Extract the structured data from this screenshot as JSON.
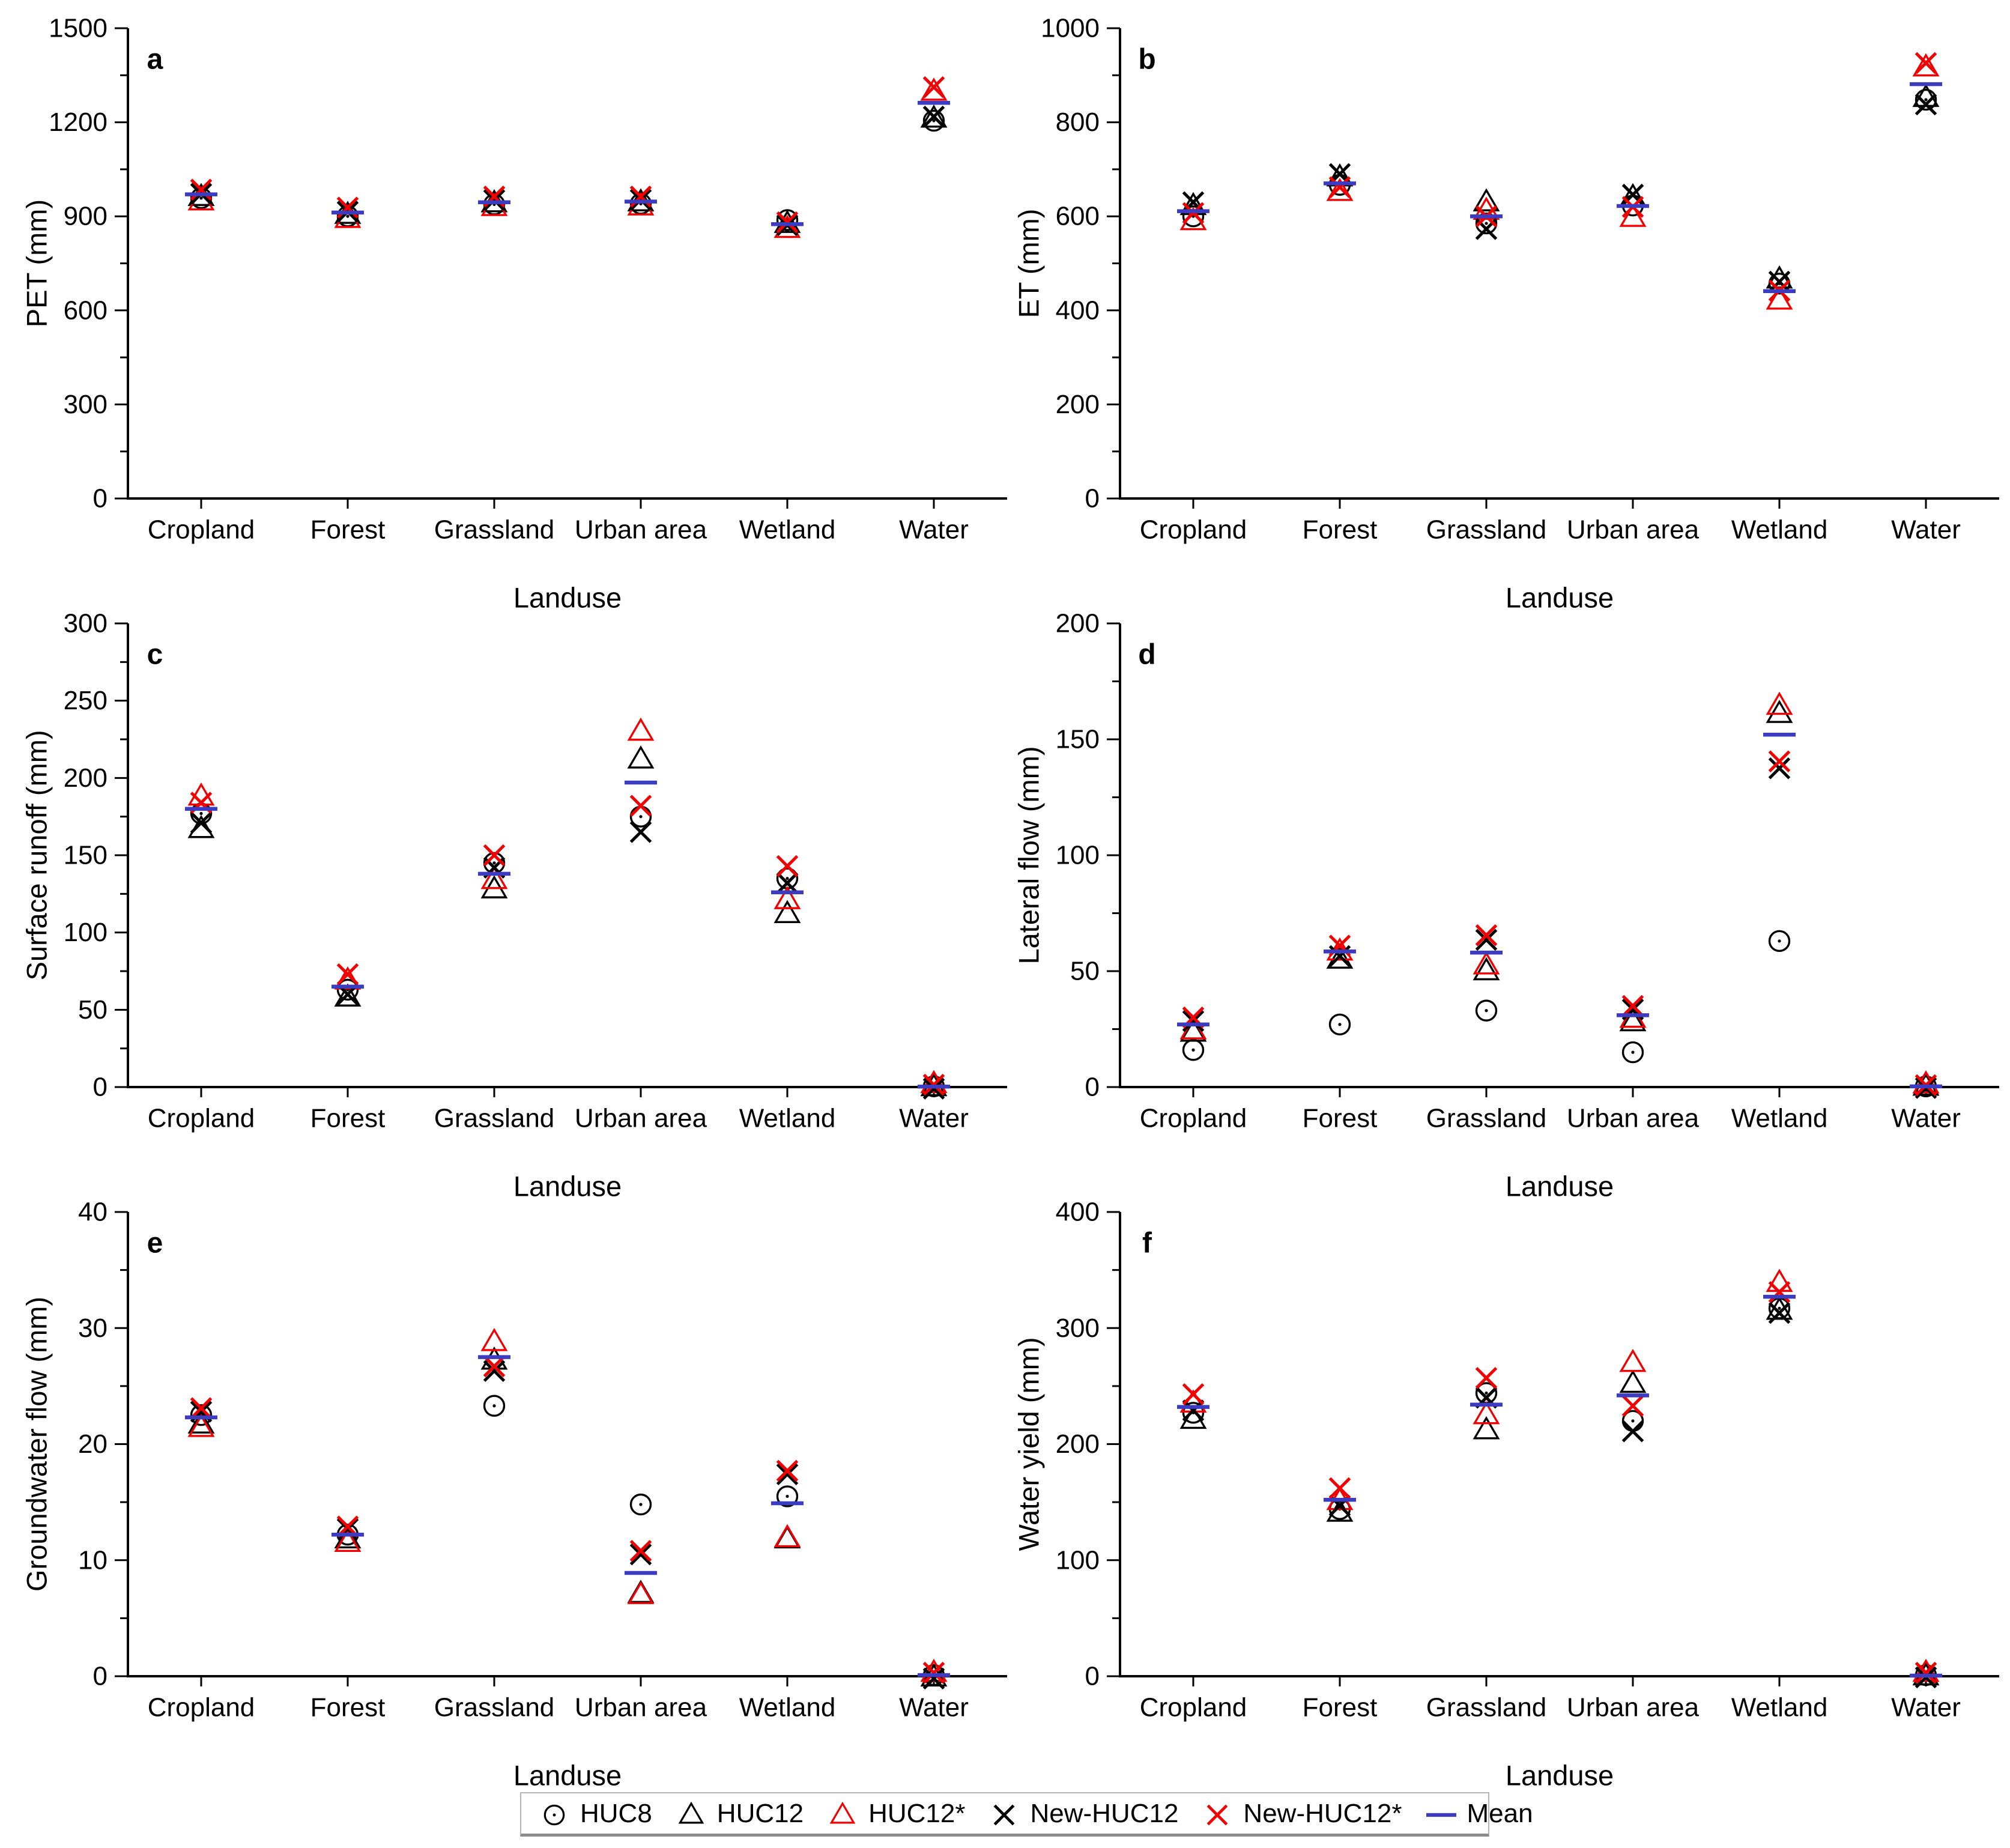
{
  "figure": {
    "background": "#ffffff",
    "x_axis_title": "Landuse",
    "categories": [
      "Cropland",
      "Forest",
      "Grassland",
      "Urban area",
      "Wetland",
      "Water"
    ]
  },
  "colors": {
    "black": "#000000",
    "red": "#f20000",
    "mean_blue": "#3c3cc0",
    "axis": "#000000",
    "legend_border": "#b4b4b4",
    "legend_border_bottom": "#8a8a8a"
  },
  "series_meta": [
    {
      "name": "HUC8",
      "marker": "circle-dot",
      "color": "#000000"
    },
    {
      "name": "HUC12",
      "marker": "triangle",
      "color": "#000000"
    },
    {
      "name": "HUC12*",
      "marker": "triangle",
      "color": "#f20000"
    },
    {
      "name": "New-HUC12",
      "marker": "x",
      "color": "#000000"
    },
    {
      "name": "New-HUC12*",
      "marker": "x",
      "color": "#f20000"
    },
    {
      "name": "Mean",
      "marker": "dash",
      "color": "#3c3cc0"
    }
  ],
  "legend": {
    "entries": [
      {
        "label": "HUC8",
        "marker": "circle-dot",
        "color": "#000000"
      },
      {
        "label": "HUC12",
        "marker": "triangle",
        "color": "#000000"
      },
      {
        "label": "HUC12*",
        "marker": "triangle",
        "color": "#f20000"
      },
      {
        "label": "New-HUC12",
        "marker": "x",
        "color": "#000000"
      },
      {
        "label": "New-HUC12*",
        "marker": "x",
        "color": "#f20000"
      },
      {
        "label": "Mean",
        "marker": "dash",
        "color": "#3c3cc0"
      }
    ]
  },
  "chart_data": [
    {
      "type": "scatter",
      "panel_label": "a",
      "ylabel": "PET (mm)",
      "xlabel": "Landuse",
      "ylim": [
        0,
        1500
      ],
      "yticks": [
        0,
        300,
        600,
        900,
        1200,
        1500
      ],
      "minor_ticks": true,
      "grid": false,
      "categories": [
        "Cropland",
        "Forest",
        "Grassland",
        "Urban area",
        "Wetland",
        "Water"
      ],
      "series": [
        {
          "name": "HUC8",
          "values": [
            958,
            900,
            938,
            940,
            888,
            1205
          ]
        },
        {
          "name": "HUC12",
          "values": [
            962,
            905,
            942,
            945,
            876,
            1212
          ]
        },
        {
          "name": "HUC12*",
          "values": [
            948,
            892,
            930,
            932,
            860,
            1298
          ]
        },
        {
          "name": "New-HUC12",
          "values": [
            972,
            915,
            952,
            953,
            872,
            1218
          ]
        },
        {
          "name": "New-HUC12*",
          "values": [
            985,
            928,
            963,
            963,
            881,
            1312
          ]
        },
        {
          "name": "Mean",
          "values": [
            970,
            912,
            945,
            947,
            875,
            1262
          ]
        }
      ]
    },
    {
      "type": "scatter",
      "panel_label": "b",
      "ylabel": "ET (mm)",
      "xlabel": "Landuse",
      "ylim": [
        0,
        1000
      ],
      "yticks": [
        0,
        200,
        400,
        600,
        800,
        1000
      ],
      "minor_ticks": true,
      "grid": false,
      "categories": [
        "Cropland",
        "Forest",
        "Grassland",
        "Urban area",
        "Wetland",
        "Water"
      ],
      "series": [
        {
          "name": "HUC8",
          "values": [
            600,
            667,
            585,
            623,
            457,
            848
          ]
        },
        {
          "name": "HUC12",
          "values": [
            622,
            683,
            630,
            641,
            466,
            852
          ]
        },
        {
          "name": "HUC12*",
          "values": [
            590,
            652,
            612,
            597,
            421,
            917
          ]
        },
        {
          "name": "New-HUC12",
          "values": [
            630,
            690,
            573,
            646,
            461,
            838
          ]
        },
        {
          "name": "New-HUC12*",
          "values": [
            607,
            662,
            600,
            620,
            442,
            926
          ]
        },
        {
          "name": "Mean",
          "values": [
            611,
            670,
            600,
            622,
            441,
            881
          ]
        }
      ]
    },
    {
      "type": "scatter",
      "panel_label": "c",
      "ylabel": "Surface runoff (mm)",
      "xlabel": "Landuse",
      "ylim": [
        0,
        300
      ],
      "yticks": [
        0,
        50,
        100,
        150,
        200,
        250,
        300
      ],
      "minor_ticks": true,
      "grid": false,
      "categories": [
        "Cropland",
        "Forest",
        "Grassland",
        "Urban area",
        "Wetland",
        "Water"
      ],
      "series": [
        {
          "name": "HUC8",
          "values": [
            177,
            63,
            145,
            175,
            135,
            0.5
          ]
        },
        {
          "name": "HUC12",
          "values": [
            167,
            58,
            128,
            212,
            112,
            0
          ]
        },
        {
          "name": "HUC12*",
          "values": [
            188,
            69,
            134,
            230,
            121,
            2
          ]
        },
        {
          "name": "New-HUC12",
          "values": [
            171,
            60,
            142,
            165,
            132,
            -1
          ]
        },
        {
          "name": "New-HUC12*",
          "values": [
            184,
            73,
            150,
            182,
            143,
            1.5
          ]
        },
        {
          "name": "Mean",
          "values": [
            180,
            65,
            138,
            197,
            126,
            0.3
          ]
        }
      ]
    },
    {
      "type": "scatter",
      "panel_label": "d",
      "ylabel": "Lateral flow (mm)",
      "xlabel": "Landuse",
      "ylim": [
        0,
        200
      ],
      "yticks": [
        0,
        50,
        100,
        150,
        200
      ],
      "minor_ticks": true,
      "grid": false,
      "categories": [
        "Cropland",
        "Forest",
        "Grassland",
        "Urban area",
        "Wetland",
        "Water"
      ],
      "series": [
        {
          "name": "HUC8",
          "values": [
            16,
            27,
            33,
            15,
            63,
            0.3
          ]
        },
        {
          "name": "HUC12",
          "values": [
            23.5,
            55,
            50,
            28,
            161,
            0.2
          ]
        },
        {
          "name": "HUC12*",
          "values": [
            24.5,
            58.5,
            52.5,
            29.5,
            164.5,
            1.2
          ]
        },
        {
          "name": "New-HUC12",
          "values": [
            28.5,
            56.5,
            63.5,
            33.5,
            137.5,
            -0.4
          ]
        },
        {
          "name": "New-HUC12*",
          "values": [
            30,
            61,
            65.5,
            35,
            140.5,
            0.8
          ]
        },
        {
          "name": "Mean",
          "values": [
            27,
            58.5,
            58,
            31,
            152,
            0.3
          ]
        }
      ]
    },
    {
      "type": "scatter",
      "panel_label": "e",
      "ylabel": "Groundwater flow (mm)",
      "xlabel": "Landuse",
      "ylim": [
        0,
        40
      ],
      "yticks": [
        0,
        10,
        20,
        30,
        40
      ],
      "minor_ticks": true,
      "grid": false,
      "categories": [
        "Cropland",
        "Forest",
        "Grassland",
        "Urban area",
        "Wetland",
        "Water"
      ],
      "series": [
        {
          "name": "HUC8",
          "values": [
            22.5,
            12.2,
            23.3,
            14.8,
            15.5,
            0.1
          ]
        },
        {
          "name": "HUC12",
          "values": [
            21.7,
            11.8,
            27.2,
            7.1,
            11.8,
            -0.1
          ]
        },
        {
          "name": "HUC12*",
          "values": [
            21.4,
            11.5,
            28.8,
            7.0,
            11.9,
            0.3
          ]
        },
        {
          "name": "New-HUC12",
          "values": [
            22.8,
            12.7,
            26.3,
            10.5,
            17.4,
            -0.2
          ]
        },
        {
          "name": "New-HUC12*",
          "values": [
            23.1,
            12.9,
            26.7,
            10.8,
            17.7,
            0.3
          ]
        },
        {
          "name": "Mean",
          "values": [
            22.3,
            12.2,
            27.5,
            8.9,
            14.9,
            0.1
          ]
        }
      ]
    },
    {
      "type": "scatter",
      "panel_label": "f",
      "ylabel": "Water yield (mm)",
      "xlabel": "Landuse",
      "ylim": [
        0,
        400
      ],
      "yticks": [
        0,
        100,
        200,
        300,
        400
      ],
      "minor_ticks": true,
      "grid": false,
      "categories": [
        "Cropland",
        "Forest",
        "Grassland",
        "Urban area",
        "Wetland",
        "Water"
      ],
      "series": [
        {
          "name": "HUC8",
          "values": [
            227,
            144,
            244,
            220,
            317,
            1
          ]
        },
        {
          "name": "HUC12",
          "values": [
            221,
            141,
            212,
            252,
            315,
            0
          ]
        },
        {
          "name": "HUC12*",
          "values": [
            235,
            151,
            225,
            270,
            339,
            3
          ]
        },
        {
          "name": "New-HUC12",
          "values": [
            229,
            147,
            240,
            211,
            313,
            -1
          ]
        },
        {
          "name": "New-HUC12*",
          "values": [
            243,
            162,
            257,
            233,
            331,
            3
          ]
        },
        {
          "name": "Mean",
          "values": [
            232,
            152,
            234,
            242,
            327,
            0.5
          ]
        }
      ]
    }
  ]
}
